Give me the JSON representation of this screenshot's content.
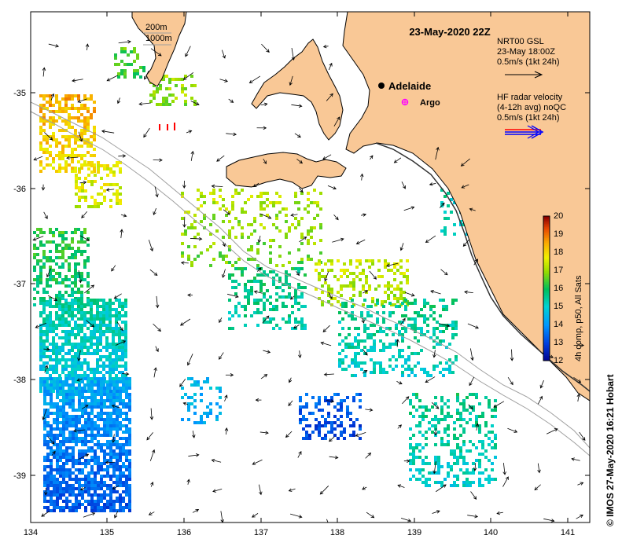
{
  "title": "23-May-2020 22Z",
  "depth_labels": [
    "200m",
    "1000m"
  ],
  "places": {
    "adelaide": "Adelaide",
    "argo": "Argo"
  },
  "gsl_legend": {
    "line1": "NRT00 GSL",
    "line2": "23-May 18:00Z",
    "line3": "0.5m/s (1kt 24h)"
  },
  "hf_legend": {
    "line1": "HF radar velocity",
    "line2": "(4-12h avg) noQC",
    "line3": "0.5m/s (1kt 24h)"
  },
  "colorbar": {
    "label": "4h comp, p50, All Sats",
    "ticks": [
      "12",
      "13",
      "14",
      "15",
      "16",
      "17",
      "18",
      "19",
      "20"
    ],
    "min": 12,
    "max": 20
  },
  "x_ticks": [
    "134",
    "135",
    "136",
    "137",
    "138",
    "139",
    "140",
    "141"
  ],
  "y_ticks": [
    "-35",
    "-36",
    "-37",
    "-38",
    "-39"
  ],
  "credit": "© IMOS 27-May-2020 16:21 Hobart",
  "colors": {
    "land": "#f9c896",
    "adelaide_dot": "#000000",
    "argo_marker": "#ff00ff",
    "hf_arrow_red": "#ff0000",
    "hf_arrow_blue": "#0000ff"
  }
}
